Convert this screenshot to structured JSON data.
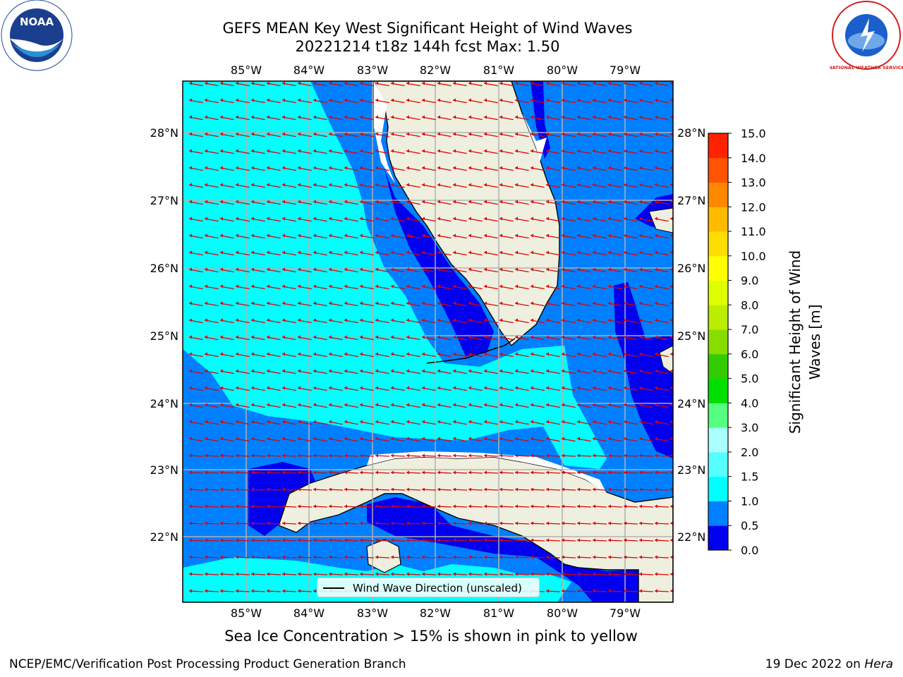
{
  "title": {
    "line1": "GEFS MEAN Key West Significant Height of Wind Waves",
    "line2": "20221214 t18z 144h fcst   Max: 1.50"
  },
  "logos": {
    "left": "noaa-logo",
    "left_text": "NOAA",
    "right": "nws-logo",
    "right_text": "NATIONAL WEATHER SERVICE"
  },
  "map": {
    "lon_ticks": [
      "85°W",
      "84°W",
      "83°W",
      "82°W",
      "81°W",
      "80°W",
      "79°W"
    ],
    "lat_ticks": [
      "28°N",
      "27°N",
      "26°N",
      "25°N",
      "24°N",
      "23°N",
      "22°N"
    ],
    "land_color": "#efefdf",
    "arrow_color": "#e00000",
    "legend_label": "Wind Wave Direction (unscaled)"
  },
  "colorbar": {
    "label_line1": "Significant Height of Wind",
    "label_line2": "Waves [m]",
    "ticks": [
      "0.0",
      "0.5",
      "1.0",
      "1.5",
      "2.0",
      "3.0",
      "4.0",
      "5.0",
      "6.0",
      "7.0",
      "8.0",
      "9.0",
      "10.0",
      "11.0",
      "12.0",
      "13.0",
      "14.0",
      "15.0"
    ],
    "colors": [
      "#0000ee",
      "#0080ff",
      "#00ffff",
      "#55ffff",
      "#aaffff",
      "#55ff7f",
      "#00e000",
      "#33cc00",
      "#88dd00",
      "#bbee00",
      "#ddff00",
      "#ffff00",
      "#ffdd00",
      "#ffbb00",
      "#ff8800",
      "#ff5500",
      "#ff2200"
    ]
  },
  "subtitle": "Sea Ice Concentration > 15% is shown in pink to yellow",
  "footer": {
    "left": "NCEP/EMC/Verification Post Processing Product Generation Branch",
    "right_date": "19 Dec 2022 on",
    "right_machine": "Hera"
  }
}
